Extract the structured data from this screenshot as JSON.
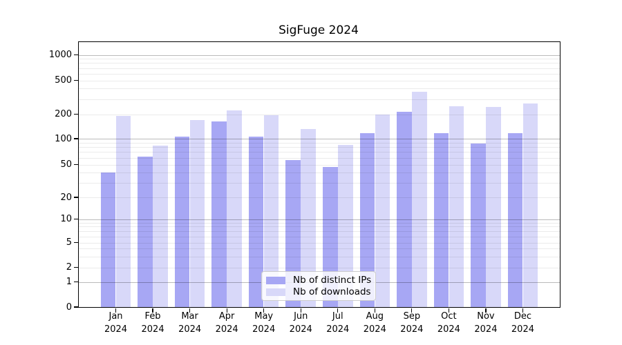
{
  "title": "SigFuge 2024",
  "chart_data": {
    "type": "bar",
    "title": "SigFuge 2024",
    "categories": [
      "Jan 2024",
      "Feb 2024",
      "Mar 2024",
      "Apr 2024",
      "May 2024",
      "Jun 2024",
      "Jul 2024",
      "Aug 2024",
      "Sep 2024",
      "Oct 2024",
      "Nov 2024",
      "Dec 2024"
    ],
    "series": [
      {
        "name": "Nb of distinct IPs",
        "color": "#a7a7f4",
        "values": [
          40,
          62,
          106,
          162,
          107,
          56,
          47,
          116,
          213,
          118,
          88,
          117
        ]
      },
      {
        "name": "Nb of downloads",
        "color": "#d8d8f9",
        "values": [
          190,
          83,
          170,
          220,
          194,
          132,
          84,
          200,
          368,
          250,
          242,
          266
        ]
      }
    ],
    "xlabel": "",
    "ylabel": "",
    "y_axis": {
      "scale": "symlog",
      "tick_labels": [
        0,
        1,
        2,
        5,
        10,
        20,
        50,
        100,
        200,
        500,
        1000
      ],
      "ylim": [
        0,
        1400
      ]
    },
    "grid": {
      "orientation": "horizontal",
      "major_at": [
        1,
        10,
        100,
        1000
      ],
      "minor_at": [
        2,
        3,
        4,
        5,
        6,
        7,
        8,
        9,
        20,
        30,
        40,
        50,
        60,
        70,
        80,
        90,
        200,
        300,
        400,
        500,
        600,
        700,
        800,
        900
      ]
    },
    "legend_position": "lower center"
  },
  "colors": {
    "bar_distinct_ips": "#a7a7f4",
    "bar_downloads": "#d8d8f9",
    "grid_major": "#b9b9b9",
    "grid_minor": "#ebebeb",
    "spine": "#000000",
    "background": "#ffffff"
  }
}
